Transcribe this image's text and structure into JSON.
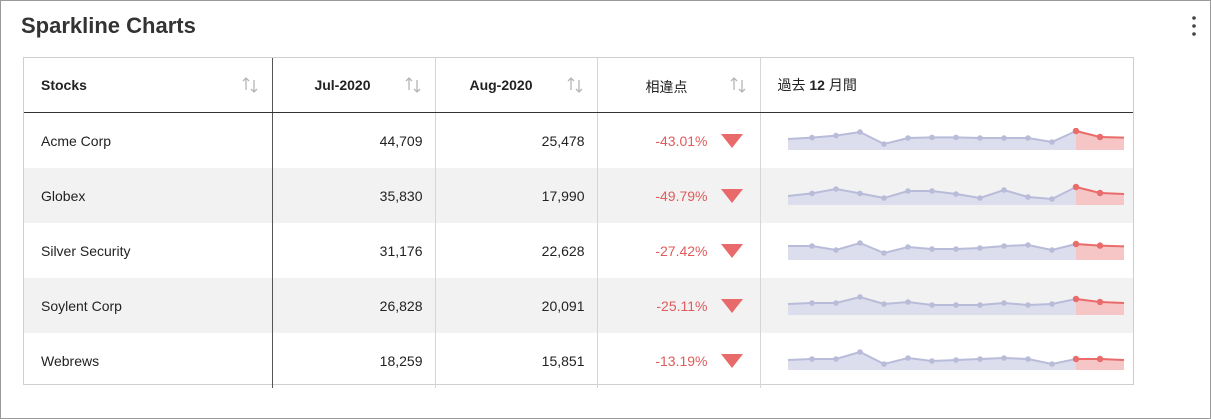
{
  "title": "Sparkline Charts",
  "columns": {
    "stocks": "Stocks",
    "jul": "Jul-2020",
    "aug": "Aug-2020",
    "diff": "相違点",
    "spark_prefix": "過去 ",
    "spark_number": "12",
    "spark_suffix": " 月間"
  },
  "icons": {
    "menu": "more-vertical-icon",
    "sort": "sort-arrows-icon",
    "trend": "triangle-down-icon"
  },
  "colors": {
    "negative": "#e05b5b",
    "spark_line": "#b9bcd9",
    "spark_fill": "#dcdeee",
    "spark_last": "#ea6b6b",
    "spark_last_fill": "#f6c6c6"
  },
  "rows": [
    {
      "name": "Acme Corp",
      "jul": "44,709",
      "aug": "25,478",
      "diff": "-43.01%"
    },
    {
      "name": "Globex",
      "jul": "35,830",
      "aug": "17,990",
      "diff": "-49.79%"
    },
    {
      "name": "Silver Security",
      "jul": "31,176",
      "aug": "22,628",
      "diff": "-27.42%"
    },
    {
      "name": "Soylent Corp",
      "jul": "26,828",
      "aug": "20,091",
      "diff": "-25.11%"
    },
    {
      "name": "Webrews",
      "jul": "18,259",
      "aug": "15,851",
      "diff": "-13.19%"
    }
  ],
  "sparklines": [
    [
      0.55,
      0.62,
      0.72,
      0.9,
      0.3,
      0.6,
      0.63,
      0.63,
      0.6,
      0.6,
      0.6,
      0.4,
      0.95,
      0.65,
      0.62
    ],
    [
      0.45,
      0.58,
      0.8,
      0.58,
      0.35,
      0.7,
      0.7,
      0.55,
      0.35,
      0.75,
      0.4,
      0.3,
      0.9,
      0.6,
      0.55
    ],
    [
      0.7,
      0.7,
      0.5,
      0.85,
      0.35,
      0.65,
      0.55,
      0.55,
      0.6,
      0.7,
      0.75,
      0.5,
      0.8,
      0.72,
      0.68
    ],
    [
      0.55,
      0.6,
      0.6,
      0.9,
      0.55,
      0.65,
      0.5,
      0.5,
      0.5,
      0.6,
      0.5,
      0.55,
      0.8,
      0.65,
      0.6
    ],
    [
      0.5,
      0.55,
      0.55,
      0.9,
      0.3,
      0.6,
      0.45,
      0.5,
      0.55,
      0.6,
      0.55,
      0.3,
      0.55,
      0.55,
      0.5
    ]
  ]
}
